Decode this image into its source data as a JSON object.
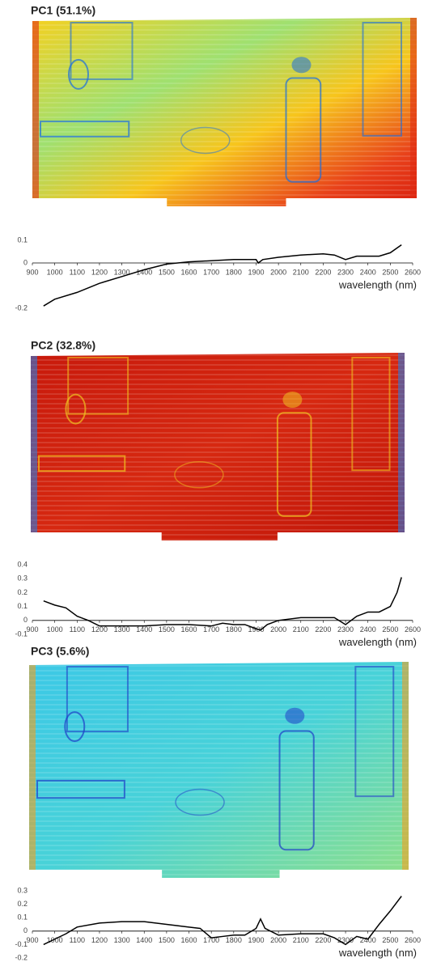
{
  "chart_data": [
    {
      "type": "line",
      "title": "PC1 (51.1%)",
      "x_label": "wavelength (nm)",
      "x": [
        950,
        1000,
        1100,
        1200,
        1300,
        1400,
        1500,
        1600,
        1700,
        1800,
        1900,
        1910,
        1930,
        2000,
        2100,
        2200,
        2250,
        2300,
        2350,
        2400,
        2450,
        2500,
        2550
      ],
      "series": [
        {
          "name": "PC1",
          "color": "#000000",
          "values": [
            -0.19,
            -0.16,
            -0.13,
            -0.09,
            -0.06,
            -0.03,
            -0.005,
            0.005,
            0.01,
            0.015,
            0.015,
            0.0,
            0.015,
            0.025,
            0.035,
            0.04,
            0.035,
            0.015,
            0.03,
            0.03,
            0.03,
            0.045,
            0.08
          ]
        }
      ],
      "xlim": [
        900,
        2600
      ],
      "xticks": [
        900,
        1000,
        1100,
        1200,
        1300,
        1400,
        1500,
        1600,
        1700,
        1800,
        1900,
        2000,
        2100,
        2200,
        2300,
        2400,
        2500,
        2600
      ],
      "ylim": [
        -0.2,
        0.1
      ],
      "yticks": [
        -0.2,
        0,
        0.1
      ]
    },
    {
      "type": "line",
      "title": "PC2 (32.8%)",
      "x_label": "wavelength (nm)",
      "x": [
        950,
        1000,
        1050,
        1100,
        1150,
        1200,
        1300,
        1400,
        1500,
        1600,
        1700,
        1750,
        1800,
        1850,
        1900,
        1920,
        1950,
        2000,
        2100,
        2200,
        2250,
        2300,
        2350,
        2400,
        2450,
        2500,
        2530,
        2550
      ],
      "series": [
        {
          "name": "PC2",
          "color": "#000000",
          "values": [
            0.14,
            0.11,
            0.09,
            0.03,
            0.0,
            -0.04,
            -0.04,
            -0.04,
            -0.03,
            -0.03,
            -0.04,
            -0.02,
            -0.03,
            -0.03,
            -0.06,
            -0.07,
            -0.03,
            0.0,
            0.02,
            0.02,
            0.02,
            -0.03,
            0.03,
            0.06,
            0.06,
            0.1,
            0.2,
            0.31
          ]
        }
      ],
      "xlim": [
        900,
        2600
      ],
      "xticks": [
        900,
        1000,
        1100,
        1200,
        1300,
        1400,
        1500,
        1600,
        1700,
        1800,
        1900,
        2000,
        2100,
        2200,
        2300,
        2400,
        2500,
        2600
      ],
      "ylim": [
        -0.1,
        0.4
      ],
      "yticks": [
        -0.1,
        0,
        0.1,
        0.2,
        0.3,
        0.4
      ]
    },
    {
      "type": "line",
      "title": "PC3 (5.6%)",
      "x_label": "wavelength (nm)",
      "x": [
        950,
        1000,
        1050,
        1100,
        1200,
        1300,
        1400,
        1500,
        1600,
        1650,
        1700,
        1750,
        1800,
        1850,
        1900,
        1920,
        1940,
        2000,
        2100,
        2200,
        2250,
        2300,
        2350,
        2400,
        2450,
        2500,
        2550
      ],
      "series": [
        {
          "name": "PC3",
          "color": "#000000",
          "values": [
            -0.1,
            -0.06,
            -0.02,
            0.03,
            0.06,
            0.07,
            0.07,
            0.05,
            0.03,
            0.02,
            -0.05,
            -0.04,
            -0.03,
            -0.03,
            0.02,
            0.09,
            0.02,
            -0.03,
            -0.02,
            -0.02,
            -0.05,
            -0.1,
            -0.04,
            -0.06,
            0.05,
            0.15,
            0.26
          ]
        }
      ],
      "xlim": [
        900,
        2600
      ],
      "xticks": [
        900,
        1000,
        1100,
        1200,
        1300,
        1400,
        1500,
        1600,
        1700,
        1800,
        1900,
        2000,
        2100,
        2200,
        2300,
        2400,
        2500,
        2600
      ],
      "ylim": [
        -0.2,
        0.3
      ],
      "yticks": [
        -0.2,
        -0.1,
        0,
        0.1,
        0.2,
        0.3
      ]
    }
  ]
}
